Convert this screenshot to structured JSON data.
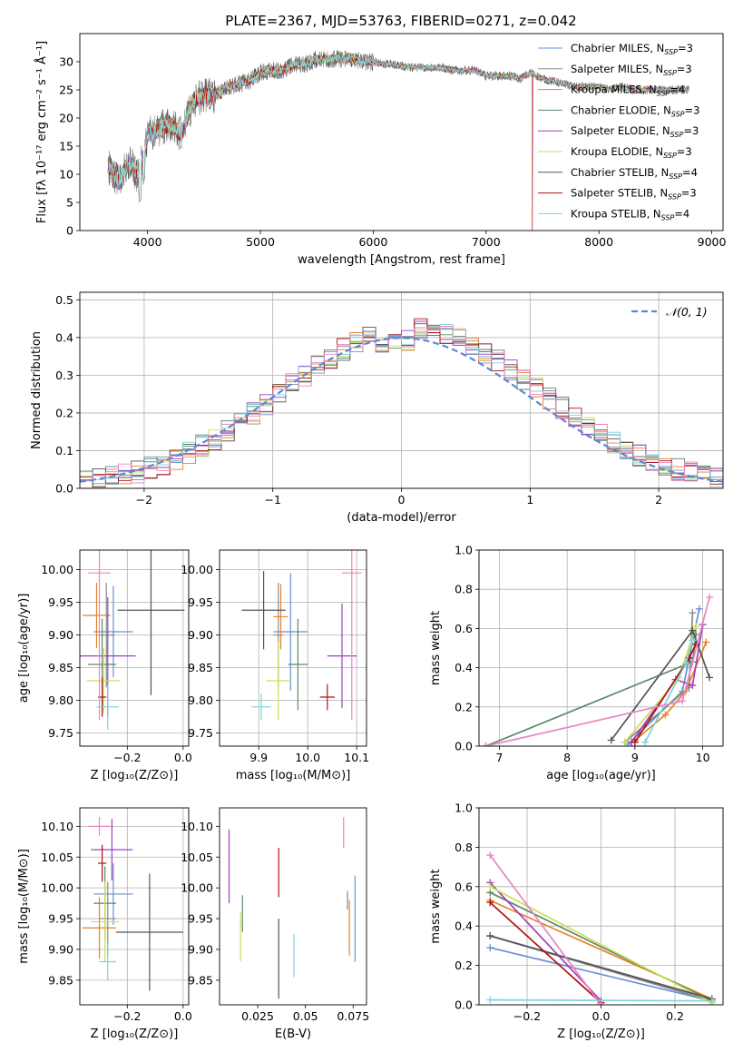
{
  "figure": {
    "title": "PLATE=2367, MJD=53763, FIBERID=0271, z=0.042"
  },
  "colors": {
    "series": [
      "#6b8fd6",
      "#8a8a8a",
      "#e8802c",
      "#5a8a66",
      "#a23fbf",
      "#c9df5a",
      "#555555",
      "#b01010",
      "#7fd3dc"
    ],
    "pink": "#e786c0"
  },
  "chart_data": [
    {
      "id": "spectrum",
      "type": "line",
      "xlabel": "wavelength [Angstrom, rest frame]",
      "ylabel": "Flux [fλ 10⁻¹⁷ erg cm⁻² s⁻¹ Å⁻¹]",
      "xlim": [
        3400,
        9100
      ],
      "ylim": [
        0,
        35
      ],
      "xticks": [
        4000,
        5000,
        6000,
        7000,
        8000,
        9000
      ],
      "yticks": [
        0,
        5,
        10,
        15,
        20,
        25,
        30
      ],
      "grid": false,
      "legend_position": "right",
      "continuum": {
        "x": [
          3650,
          3700,
          3750,
          3800,
          3850,
          3900,
          3950,
          4000,
          4100,
          4200,
          4300,
          4400,
          4500,
          4600,
          4700,
          4800,
          4900,
          5000,
          5100,
          5200,
          5300,
          5400,
          5500,
          5600,
          5700,
          5800,
          5900,
          6000,
          6100,
          6200,
          6300,
          6400,
          6500,
          6600,
          6700,
          6800,
          6900,
          7000,
          7100,
          7200,
          7300,
          7400,
          7500,
          7600,
          7700,
          7800,
          7900,
          8000,
          8100,
          8200,
          8300,
          8400,
          8500,
          8600,
          8700,
          8800
        ],
        "y": [
          11.5,
          9.5,
          8.5,
          11,
          12,
          10,
          12,
          17,
          18,
          19,
          17,
          23,
          24,
          24,
          25.5,
          26,
          26.5,
          28,
          28.5,
          28.5,
          29.5,
          29.5,
          30.5,
          30.5,
          30.5,
          30.5,
          30,
          30,
          29.5,
          29.5,
          29,
          29,
          29,
          29,
          28.5,
          28.5,
          28.5,
          27.5,
          27.5,
          27.5,
          27,
          28,
          27,
          26.5,
          26,
          25.5,
          25.5,
          25.5,
          25,
          25.5,
          25,
          25,
          25,
          25,
          25,
          25
        ]
      },
      "dropouts": [
        {
          "series": 5,
          "x": 3920
        },
        {
          "series": 5,
          "x": 6800
        },
        {
          "series": 7,
          "x": 7410
        }
      ],
      "legend": [
        {
          "label": "Chabrier MILES, N",
          "sub": "SSP",
          "suffix": "=3",
          "color_index": 0
        },
        {
          "label": "Salpeter MILES, N",
          "sub": "SSP",
          "suffix": "=3",
          "color_index": 1
        },
        {
          "label": "Kroupa MILES, N",
          "sub": "SSP",
          "suffix": "=4",
          "color_index": 2
        },
        {
          "label": "Chabrier ELODIE, N",
          "sub": "SSP",
          "suffix": "=3",
          "color_index": 3
        },
        {
          "label": "Salpeter ELODIE, N",
          "sub": "SSP",
          "suffix": "=3",
          "color_index": 4
        },
        {
          "label": "Kroupa ELODIE, N",
          "sub": "SSP",
          "suffix": "=3",
          "color_index": 5
        },
        {
          "label": "Chabrier STELIB, N",
          "sub": "SSP",
          "suffix": "=4",
          "color_index": 6
        },
        {
          "label": "Salpeter STELIB, N",
          "sub": "SSP",
          "suffix": "=3",
          "color_index": 7
        },
        {
          "label": "Kroupa STELIB, N",
          "sub": "SSP",
          "suffix": "=4",
          "color_index": 8
        }
      ]
    },
    {
      "id": "residuals",
      "type": "line",
      "xlabel": "(data-model)/error",
      "ylabel": "Normed distribution",
      "xlim": [
        -2.5,
        2.5
      ],
      "ylim": [
        0,
        0.52
      ],
      "xticks": [
        -2,
        -1,
        0,
        1,
        2
      ],
      "yticks": [
        0.0,
        0.1,
        0.2,
        0.3,
        0.4,
        0.5
      ],
      "grid": true,
      "bin_width": 0.1,
      "legend": [
        {
          "label": "𝒩(0, 1)",
          "color": "#5b87d6",
          "style": "dashed"
        }
      ],
      "legend_position": "top-right"
    },
    {
      "id": "age-vs-Z",
      "type": "scatter",
      "xlabel": "Z [log₁₀(Z/Z⊙)]",
      "ylabel": "age  [log₁₀(age/yr)]",
      "xlim": [
        -0.37,
        0.02
      ],
      "ylim": [
        9.73,
        10.03
      ],
      "xticks": [
        -0.2,
        0.0
      ],
      "yticks": [
        9.75,
        9.8,
        9.85,
        9.9,
        9.95,
        10.0
      ],
      "grid": true,
      "points": [
        {
          "x": -0.25,
          "y": 9.905,
          "xerr": 0.07,
          "yerr": 0.07,
          "c": 0
        },
        {
          "x": -0.275,
          "y": 9.9,
          "xerr": 0.03,
          "yerr": 0.08,
          "c": 1
        },
        {
          "x": -0.31,
          "y": 9.93,
          "xerr": 0.05,
          "yerr": 0.05,
          "c": 2
        },
        {
          "x": -0.29,
          "y": 9.855,
          "xerr": 0.05,
          "yerr": 0.07,
          "c": 3
        },
        {
          "x": -0.27,
          "y": 9.868,
          "xerr": 0.1,
          "yerr": 0.09,
          "c": 4
        },
        {
          "x": -0.285,
          "y": 9.83,
          "xerr": 0.06,
          "yerr": 0.05,
          "c": 5
        },
        {
          "x": -0.115,
          "y": 9.938,
          "xerr": 0.12,
          "yerr": 0.13,
          "c": 6
        },
        {
          "x": -0.29,
          "y": 9.805,
          "xerr": 0.015,
          "yerr": 0.03,
          "c": 7
        },
        {
          "x": -0.27,
          "y": 9.79,
          "xerr": 0.04,
          "yerr": 0.035,
          "c": 8
        },
        {
          "x": -0.3,
          "y": 9.995,
          "xerr": 0.04,
          "yerr": 0.225,
          "c": "pink"
        }
      ]
    },
    {
      "id": "age-vs-mass",
      "type": "scatter",
      "xlabel": "mass [log₁₀(M/M⊙)]",
      "ylabel": "",
      "xlim": [
        9.82,
        10.12
      ],
      "ylim": [
        9.73,
        10.03
      ],
      "xticks": [
        9.9,
        10.0,
        10.1
      ],
      "yticks": [
        9.75,
        9.8,
        9.85,
        9.9,
        9.95,
        10.0
      ],
      "grid": true,
      "points": [
        {
          "x": 9.965,
          "y": 9.905,
          "xerr": 0.035,
          "yerr": 0.09,
          "c": 0
        },
        {
          "x": 9.94,
          "y": 9.9,
          "xerr": 0.01,
          "yerr": 0.08,
          "c": 1
        },
        {
          "x": 9.945,
          "y": 9.928,
          "xerr": 0.015,
          "yerr": 0.05,
          "c": 2
        },
        {
          "x": 9.98,
          "y": 9.855,
          "xerr": 0.02,
          "yerr": 0.07,
          "c": 3
        },
        {
          "x": 10.07,
          "y": 9.868,
          "xerr": 0.03,
          "yerr": 0.08,
          "c": 4
        },
        {
          "x": 9.94,
          "y": 9.83,
          "xerr": 0.025,
          "yerr": 0.06,
          "c": 5
        },
        {
          "x": 9.91,
          "y": 9.938,
          "xerr": 0.045,
          "yerr": 0.06,
          "c": 6
        },
        {
          "x": 10.04,
          "y": 9.805,
          "xerr": 0.015,
          "yerr": 0.02,
          "c": 7
        },
        {
          "x": 9.905,
          "y": 9.79,
          "xerr": 0.02,
          "yerr": 0.02,
          "c": 8
        },
        {
          "x": 10.09,
          "y": 9.995,
          "xerr": 0.02,
          "yerr": 0.225,
          "c": "pink"
        }
      ]
    },
    {
      "id": "weight-vs-age",
      "type": "line",
      "xlabel": "age  [log₁₀(age/yr)]",
      "ylabel": "mass weight",
      "xlim": [
        6.7,
        10.3
      ],
      "ylim": [
        0,
        1
      ],
      "xticks": [
        7,
        8,
        9,
        10
      ],
      "yticks": [
        0.0,
        0.2,
        0.4,
        0.6,
        0.8,
        1.0
      ],
      "grid": true,
      "series": [
        {
          "c": 0,
          "x": [
            8.9,
            9.7,
            9.95
          ],
          "y": [
            0.01,
            0.28,
            0.7
          ]
        },
        {
          "c": 1,
          "x": [
            8.85,
            9.8,
            9.85
          ],
          "y": [
            0.02,
            0.3,
            0.68
          ]
        },
        {
          "c": 2,
          "x": [
            9.0,
            9.45,
            9.75,
            10.05
          ],
          "y": [
            0.03,
            0.16,
            0.28,
            0.53
          ]
        },
        {
          "c": 3,
          "x": [
            6.8,
            9.85,
            9.9
          ],
          "y": [
            0.0,
            0.43,
            0.57
          ]
        },
        {
          "c": 4,
          "x": [
            8.95,
            9.6,
            9.85,
            10.0
          ],
          "y": [
            0.02,
            0.34,
            0.31,
            0.62
          ]
        },
        {
          "c": 5,
          "x": [
            8.85,
            9.65,
            9.9
          ],
          "y": [
            0.02,
            0.35,
            0.61
          ]
        },
        {
          "c": 6,
          "x": [
            8.65,
            9.85,
            10.1
          ],
          "y": [
            0.03,
            0.59,
            0.35
          ]
        },
        {
          "c": 7,
          "x": [
            9.0,
            9.8,
            9.9
          ],
          "y": [
            0.02,
            0.45,
            0.52
          ]
        },
        {
          "c": 8,
          "x": [
            9.15,
            9.75,
            9.85
          ],
          "y": [
            0.02,
            0.42,
            0.54
          ]
        },
        {
          "c": "pink",
          "x": [
            6.8,
            9.7,
            10.1
          ],
          "y": [
            0.0,
            0.23,
            0.76
          ]
        }
      ]
    },
    {
      "id": "mass-vs-Z",
      "type": "scatter",
      "xlabel": "Z [log₁₀(Z/Z⊙)]",
      "ylabel": "mass [log₁₀(M/M⊙)]",
      "xlim": [
        -0.37,
        0.02
      ],
      "ylim": [
        9.81,
        10.13
      ],
      "xticks": [
        -0.2,
        0.0
      ],
      "yticks": [
        9.85,
        9.9,
        9.95,
        10.0,
        10.05,
        10.1
      ],
      "grid": true,
      "points": [
        {
          "x": -0.25,
          "y": 9.99,
          "xerr": 0.07,
          "yerr": 0.05,
          "c": 0
        },
        {
          "x": -0.27,
          "y": 9.95,
          "xerr": 0.03,
          "yerr": 0.06,
          "c": 1
        },
        {
          "x": -0.3,
          "y": 9.935,
          "xerr": 0.06,
          "yerr": 0.05,
          "c": 2
        },
        {
          "x": -0.28,
          "y": 9.975,
          "xerr": 0.04,
          "yerr": 0.06,
          "c": 3
        },
        {
          "x": -0.255,
          "y": 10.062,
          "xerr": 0.075,
          "yerr": 0.05,
          "c": 4
        },
        {
          "x": -0.28,
          "y": 9.945,
          "xerr": 0.05,
          "yerr": 0.065,
          "c": 5
        },
        {
          "x": -0.12,
          "y": 9.928,
          "xerr": 0.12,
          "yerr": 0.095,
          "c": 6
        },
        {
          "x": -0.29,
          "y": 10.04,
          "xerr": 0.015,
          "yerr": 0.03,
          "c": 7
        },
        {
          "x": -0.27,
          "y": 9.88,
          "xerr": 0.03,
          "yerr": 0.03,
          "c": 8
        },
        {
          "x": -0.3,
          "y": 10.1,
          "xerr": 0.04,
          "yerr": 0.015,
          "c": "pink"
        }
      ]
    },
    {
      "id": "mass-vs-EBV",
      "type": "scatter",
      "xlabel": "E(B-V)",
      "ylabel": "",
      "xlim": [
        0.005,
        0.082
      ],
      "ylim": [
        9.81,
        10.13
      ],
      "xticks": [
        0.025,
        0.05,
        0.075
      ],
      "yticks": [
        9.85,
        9.9,
        9.95,
        10.0,
        10.05,
        10.1
      ],
      "grid": false,
      "points": [
        {
          "x": 0.076,
          "y": 9.95,
          "yerr": 0.07,
          "c": 0
        },
        {
          "x": 0.072,
          "y": 9.98,
          "yerr": 0.015,
          "c": 1
        },
        {
          "x": 0.073,
          "y": 9.935,
          "yerr": 0.045,
          "c": 2
        },
        {
          "x": 0.017,
          "y": 9.958,
          "yerr": 0.03,
          "c": 3
        },
        {
          "x": 0.01,
          "y": 10.035,
          "yerr": 0.06,
          "c": 4
        },
        {
          "x": 0.016,
          "y": 9.92,
          "yerr": 0.04,
          "c": 5
        },
        {
          "x": 0.036,
          "y": 9.885,
          "yerr": 0.065,
          "c": 6
        },
        {
          "x": 0.036,
          "y": 10.025,
          "yerr": 0.04,
          "c": 7
        },
        {
          "x": 0.044,
          "y": 9.89,
          "yerr": 0.035,
          "c": 8
        },
        {
          "x": 0.07,
          "y": 10.09,
          "yerr": 0.025,
          "c": "pink"
        }
      ]
    },
    {
      "id": "weight-vs-Z",
      "type": "line",
      "xlabel": "Z [log₁₀(Z/Z⊙)]",
      "ylabel": "mass weight",
      "xlim": [
        -0.33,
        0.33
      ],
      "ylim": [
        0,
        1
      ],
      "xticks": [
        -0.2,
        0.0,
        0.2
      ],
      "yticks": [
        0.0,
        0.2,
        0.4,
        0.6,
        0.8,
        1.0
      ],
      "grid": true,
      "series": [
        {
          "c": 0,
          "x": [
            -0.3,
            0.3
          ],
          "y": [
            0.29,
            0.02
          ]
        },
        {
          "c": 1,
          "x": [
            -0.3,
            0.3
          ],
          "y": [
            0.35,
            0.02
          ]
        },
        {
          "c": 2,
          "x": [
            -0.3,
            0.3
          ],
          "y": [
            0.53,
            0.03
          ]
        },
        {
          "c": 3,
          "x": [
            -0.3,
            0.3
          ],
          "y": [
            0.57,
            0.02
          ]
        },
        {
          "c": 4,
          "x": [
            -0.3,
            0.0
          ],
          "y": [
            0.62,
            0.02
          ]
        },
        {
          "c": 5,
          "x": [
            -0.3,
            0.3
          ],
          "y": [
            0.6,
            0.01
          ]
        },
        {
          "c": 6,
          "x": [
            -0.3,
            0.3
          ],
          "y": [
            0.35,
            0.03
          ]
        },
        {
          "c": 7,
          "x": [
            -0.3,
            0.0
          ],
          "y": [
            0.52,
            0.01
          ]
        },
        {
          "c": 8,
          "x": [
            -0.3,
            0.3
          ],
          "y": [
            0.025,
            0.02
          ]
        },
        {
          "c": "pink",
          "x": [
            -0.3,
            0.0
          ],
          "y": [
            0.76,
            0.0
          ]
        }
      ]
    }
  ]
}
